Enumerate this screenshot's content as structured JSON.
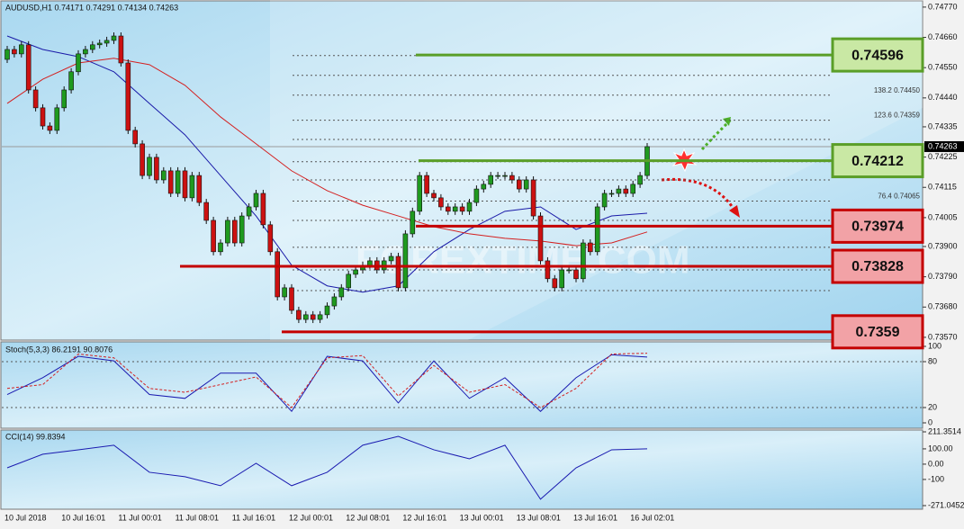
{
  "chart_data": [
    {
      "type": "candlestick",
      "title": "AUDUSD,H1  0.74171 0.74291 0.74134 0.74263",
      "watermark": "FOREXTIME.COM",
      "categories": [
        "10 Jul 2018",
        null,
        null,
        null,
        null,
        null,
        null,
        null,
        "10 Jul 16:01",
        null,
        null,
        null,
        null,
        null,
        null,
        null,
        "11 Jul 00:01",
        null,
        null,
        null,
        null,
        null,
        null,
        null,
        "11 Jul 08:01",
        null,
        null,
        null,
        null,
        null,
        null,
        null,
        "11 Jul 16:01",
        null,
        null,
        null,
        null,
        null,
        null,
        null,
        "12 Jul 00:01",
        null,
        null,
        null,
        null,
        null,
        null,
        null,
        "12 Jul 08:01",
        null,
        null,
        null,
        null,
        null,
        null,
        null,
        "12 Jul 16:01",
        null,
        null,
        null,
        null,
        null,
        null,
        null,
        "13 Jul 00:01",
        null,
        null,
        null,
        null,
        null,
        null,
        null,
        "13 Jul 08:01",
        null,
        null,
        null,
        null,
        null,
        null,
        null,
        "13 Jul 16:01",
        null,
        null,
        null,
        null,
        null,
        null,
        null,
        "16 Jul 02:01",
        null,
        null
      ],
      "open": 0.7458,
      "close": [
        0.74616,
        0.746,
        0.74633,
        0.74469,
        0.74404,
        0.74338,
        0.74322,
        0.74404,
        0.74469,
        0.74535,
        0.746,
        0.74616,
        0.74633,
        0.74639,
        0.74649,
        0.74665,
        0.74567,
        0.74322,
        0.74273,
        0.74158,
        0.74224,
        0.74142,
        0.74175,
        0.74093,
        0.74175,
        0.74077,
        0.74158,
        0.7406,
        0.73995,
        0.73881,
        0.73913,
        0.73995,
        0.73913,
        0.74011,
        0.74044,
        0.74093,
        0.73979,
        0.73881,
        0.73717,
        0.7375,
        0.73668,
        0.73635,
        0.73652,
        0.73635,
        0.73652,
        0.73684,
        0.73717,
        0.7375,
        0.73799,
        0.73815,
        0.73832,
        0.73848,
        0.73815,
        0.73848,
        0.73864,
        0.7375,
        0.73946,
        0.74028,
        0.74158,
        0.74093,
        0.74077,
        0.74044,
        0.74028,
        0.74044,
        0.74028,
        0.7406,
        0.74109,
        0.74126,
        0.74158,
        0.74158,
        0.74158,
        0.74142,
        0.74109,
        0.74142,
        0.74011,
        0.73848,
        0.73783,
        0.7375,
        0.73815,
        0.73815,
        0.73783,
        0.73913,
        0.73881,
        0.74044,
        0.74093,
        0.74093,
        0.74109,
        0.74093,
        0.74126,
        0.74158,
        0.74263
      ],
      "up_color": "#1f9a1f",
      "down_color": "#cc1111",
      "overlays": [
        {
          "color": "#1a1aa8",
          "x": [
            0,
            5,
            10,
            15,
            20,
            25,
            30,
            35,
            40,
            45,
            50,
            55,
            60,
            65,
            70,
            75,
            80,
            85,
            90
          ],
          "values": [
            0.74665,
            0.74616,
            0.7459,
            0.74535,
            0.7442,
            0.74306,
            0.74158,
            0.74011,
            0.73832,
            0.73757,
            0.73734,
            0.73757,
            0.73881,
            0.73962,
            0.74028,
            0.74044,
            0.73962,
            0.74011,
            0.74021
          ]
        },
        {
          "color": "#d42020",
          "x": [
            0,
            5,
            10,
            15,
            20,
            25,
            30,
            35,
            40,
            45,
            50,
            55,
            60,
            65,
            70,
            75,
            80,
            85,
            90
          ],
          "values": [
            0.7442,
            0.74508,
            0.74567,
            0.74584,
            0.74561,
            0.74486,
            0.74371,
            0.74273,
            0.74175,
            0.74103,
            0.7405,
            0.74011,
            0.73972,
            0.73946,
            0.7393,
            0.7392,
            0.73903,
            0.73913,
            0.73953
          ]
        }
      ],
      "levels": [
        {
          "value": 0.74596,
          "color": "#5a9e28",
          "fill": "#c9e8a4"
        },
        {
          "value": 0.74212,
          "color": "#5a9e28",
          "fill": "#c9e8a4"
        },
        {
          "value": 0.73974,
          "color": "#c40000",
          "fill": "#f2a2a6"
        },
        {
          "value": 0.73828,
          "color": "#c40000",
          "fill": "#f2a2a6"
        },
        {
          "value": 0.7359,
          "color": "#c40000",
          "fill": "#f2a2a6"
        }
      ],
      "fib_levels": [
        {
          "value": 0.7445,
          "label": "138.2 0.74450"
        },
        {
          "value": 0.74359,
          "label": "123.6 0.74359"
        },
        {
          "value": 0.74065,
          "label": "76.4 0.74065"
        }
      ],
      "dashed_lines": [
        0.74594,
        0.74522,
        0.74289,
        0.74208,
        0.74142,
        0.73995,
        0.73897,
        0.73815,
        0.7374
      ],
      "last_price": 0.74263,
      "ylim": [
        0.7356,
        0.74786
      ],
      "yticks": [
        {
          "value": 0.7477,
          "label": "0.74770"
        },
        {
          "value": 0.7466,
          "label": "0.74660"
        },
        {
          "value": 0.7455,
          "label": "0.74550"
        },
        {
          "value": 0.7444,
          "label": "0.74440"
        },
        0.74335,
        0.74225,
        0.74115,
        0.74005,
        {
          "value": 0.739,
          "label": "0.73900"
        },
        {
          "value": 0.7379,
          "label": "0.73790"
        },
        {
          "value": 0.7368,
          "label": "0.73680"
        },
        {
          "value": 0.7357,
          "label": "0.73570"
        }
      ]
    },
    {
      "type": "line",
      "title": "Stoch(5,3,3) 86.2191 90.8076",
      "x": [
        0,
        5,
        10,
        15,
        20,
        25,
        30,
        35,
        40,
        45,
        50,
        55,
        60,
        65,
        70,
        75,
        80,
        85,
        90
      ],
      "series": [
        {
          "color": "#1a1ab0",
          "values": [
            37,
            59,
            87,
            81,
            37,
            32,
            65,
            65,
            15,
            87,
            81,
            26,
            81,
            32,
            59,
            15,
            59,
            89,
            86
          ]
        },
        {
          "color": "#d42020",
          "dashed": true,
          "values": [
            45,
            50,
            90,
            85,
            45,
            40,
            50,
            60,
            20,
            85,
            88,
            35,
            75,
            40,
            50,
            20,
            45,
            90,
            91
          ]
        }
      ],
      "ylim": [
        0,
        100
      ],
      "yticks": [
        100,
        80,
        20,
        0
      ]
    },
    {
      "type": "line",
      "title": "CCI(14) 99.8394",
      "x": [
        0,
        5,
        10,
        15,
        20,
        25,
        30,
        35,
        40,
        45,
        50,
        55,
        60,
        65,
        70,
        75,
        80,
        85,
        90
      ],
      "series": [
        {
          "color": "#1a1ab0",
          "values": [
            -24,
            65,
            94,
            124,
            -53,
            -82,
            -141,
            6,
            -141,
            -53,
            124,
            182,
            94,
            35,
            124,
            -229,
            -24,
            94,
            100
          ]
        }
      ],
      "ylim": [
        -271.0452,
        211.3514
      ],
      "yticks": [
        211.3514,
        {
          "value": 100,
          "label": "100.00"
        },
        {
          "value": 0,
          "label": "0.00"
        },
        -100,
        -271.0452
      ]
    }
  ]
}
